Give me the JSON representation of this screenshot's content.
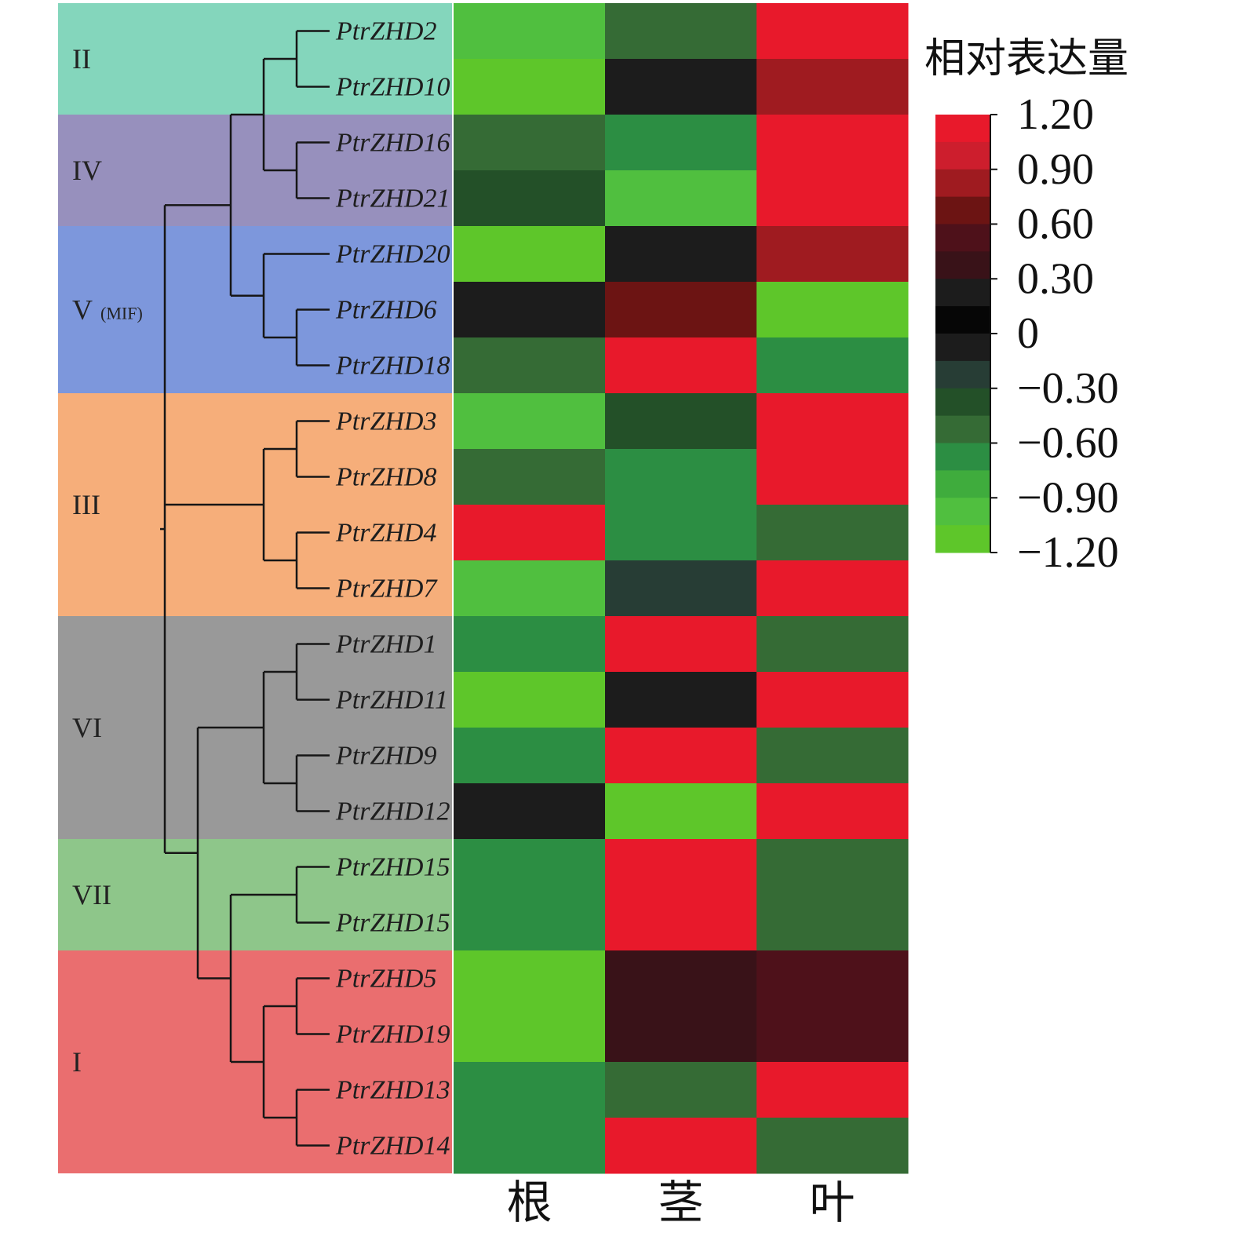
{
  "chart_data": {
    "type": "heatmap",
    "columns": [
      "根",
      "茎",
      "叶"
    ],
    "rows": [
      {
        "gene": "PtrZHD2",
        "clade": "II",
        "values": [
          -0.9,
          -0.5,
          1.2
        ]
      },
      {
        "gene": "PtrZHD10",
        "clade": "II",
        "values": [
          -1.2,
          -0.1,
          0.75
        ]
      },
      {
        "gene": "PtrZHD16",
        "clade": "IV",
        "values": [
          -0.5,
          -0.75,
          1.2
        ]
      },
      {
        "gene": "PtrZHD21",
        "clade": "IV",
        "values": [
          -0.4,
          -0.9,
          1.2
        ]
      },
      {
        "gene": "PtrZHD20",
        "clade": "V",
        "values": [
          -1.2,
          -0.1,
          0.75
        ]
      },
      {
        "gene": "PtrZHD6",
        "clade": "V",
        "values": [
          0.2,
          0.7,
          -1.2
        ]
      },
      {
        "gene": "PtrZHD18",
        "clade": "V",
        "values": [
          -0.6,
          1.2,
          -0.75
        ]
      },
      {
        "gene": "PtrZHD3",
        "clade": "III",
        "values": [
          -0.9,
          -0.4,
          1.2
        ]
      },
      {
        "gene": "PtrZHD8",
        "clade": "III",
        "values": [
          -0.6,
          -0.7,
          1.2
        ]
      },
      {
        "gene": "PtrZHD4",
        "clade": "III",
        "values": [
          1.2,
          -0.75,
          -0.5
        ]
      },
      {
        "gene": "PtrZHD7",
        "clade": "III",
        "values": [
          -0.9,
          -0.2,
          1.2
        ]
      },
      {
        "gene": "PtrZHD1",
        "clade": "VI",
        "values": [
          -0.75,
          1.2,
          -0.6
        ]
      },
      {
        "gene": "PtrZHD11",
        "clade": "VI",
        "values": [
          -1.2,
          -0.1,
          1.05
        ]
      },
      {
        "gene": "PtrZHD9",
        "clade": "VI",
        "values": [
          -0.75,
          1.2,
          -0.6
        ]
      },
      {
        "gene": "PtrZHD12",
        "clade": "VI",
        "values": [
          -0.1,
          -1.1,
          1.05
        ]
      },
      {
        "gene": "PtrZHD15",
        "clade": "VII",
        "values": [
          -0.75,
          1.2,
          -0.6
        ]
      },
      {
        "gene": "PtrZHD15",
        "clade": "VII",
        "values": [
          -0.75,
          1.2,
          -0.6
        ]
      },
      {
        "gene": "PtrZHD5",
        "clade": "I",
        "values": [
          -1.2,
          0.4,
          0.55
        ]
      },
      {
        "gene": "PtrZHD19",
        "clade": "I",
        "values": [
          -1.2,
          0.4,
          0.55
        ]
      },
      {
        "gene": "PtrZHD13",
        "clade": "I",
        "values": [
          -0.75,
          -0.6,
          1.2
        ]
      },
      {
        "gene": "PtrZHD14",
        "clade": "I",
        "values": [
          -0.75,
          1.2,
          -0.6
        ]
      }
    ],
    "clades": [
      {
        "label": "II",
        "sub": "",
        "start": 0,
        "end": 2,
        "color": "#84d6bc"
      },
      {
        "label": "IV",
        "sub": "",
        "start": 2,
        "end": 4,
        "color": "#9790bd"
      },
      {
        "label": "V",
        "sub": "(MIF)",
        "start": 4,
        "end": 7,
        "color": "#7d97dc"
      },
      {
        "label": "III",
        "sub": "",
        "start": 7,
        "end": 11,
        "color": "#f6ae7a"
      },
      {
        "label": "VI",
        "sub": "",
        "start": 11,
        "end": 15,
        "color": "#999999"
      },
      {
        "label": "VII",
        "sub": "",
        "start": 15,
        "end": 17,
        "color": "#8ec68a"
      },
      {
        "label": "I",
        "sub": "",
        "start": 17,
        "end": 21,
        "color": "#ea6e6f"
      }
    ],
    "tree": {
      "c": [
        {
          "c": [
            {
              "c": [
                {
                  "c": [
                    {
                      "leaf": 0
                    },
                    {
                      "leaf": 1
                    }
                  ]
                },
                {
                  "c": [
                    {
                      "leaf": 2
                    },
                    {
                      "leaf": 3
                    }
                  ]
                }
              ]
            },
            {
              "c": [
                {
                  "leaf": 4
                },
                {
                  "c": [
                    {
                      "leaf": 5
                    },
                    {
                      "leaf": 6
                    }
                  ]
                }
              ]
            }
          ]
        },
        {
          "c": [
            {
              "c": [
                {
                  "leaf": 7
                },
                {
                  "leaf": 8
                }
              ]
            },
            {
              "c": [
                {
                  "leaf": 9
                },
                {
                  "leaf": 10
                }
              ]
            }
          ]
        },
        {
          "c": [
            {
              "c": [
                {
                  "c": [
                    {
                      "leaf": 11
                    },
                    {
                      "leaf": 12
                    }
                  ]
                },
                {
                  "c": [
                    {
                      "leaf": 13
                    },
                    {
                      "leaf": 14
                    }
                  ]
                }
              ]
            },
            {
              "c": [
                {
                  "c": [
                    {
                      "leaf": 15
                    },
                    {
                      "leaf": 16
                    }
                  ]
                },
                {
                  "c": [
                    {
                      "c": [
                        {
                          "leaf": 17
                        },
                        {
                          "leaf": 18
                        }
                      ]
                    },
                    {
                      "c": [
                        {
                          "leaf": 19
                        },
                        {
                          "leaf": 20
                        }
                      ]
                    }
                  ]
                }
              ]
            }
          ]
        }
      ]
    },
    "legend": {
      "title": "相对表达量",
      "ticks": [
        "1.20",
        "0.90",
        "0.60",
        "0.30",
        "0",
        "−0.30",
        "−0.60",
        "−0.90",
        "−1.20"
      ],
      "tick_values": [
        1.2,
        0.9,
        0.6,
        0.3,
        0,
        -0.3,
        -0.6,
        -0.9,
        -1.2
      ],
      "range": [
        -1.2,
        1.2
      ],
      "colors": [
        "#5ec62a",
        "#50bf3f",
        "#3fac3d",
        "#2c8e43",
        "#356b35",
        "#235028",
        "#273d35",
        "#1c1c1c",
        "#060606",
        "#1c1c1c",
        "#391218",
        "#4e111a",
        "#6c1413",
        "#9f1b20",
        "#cd1e2d",
        "#e8192b"
      ]
    }
  }
}
